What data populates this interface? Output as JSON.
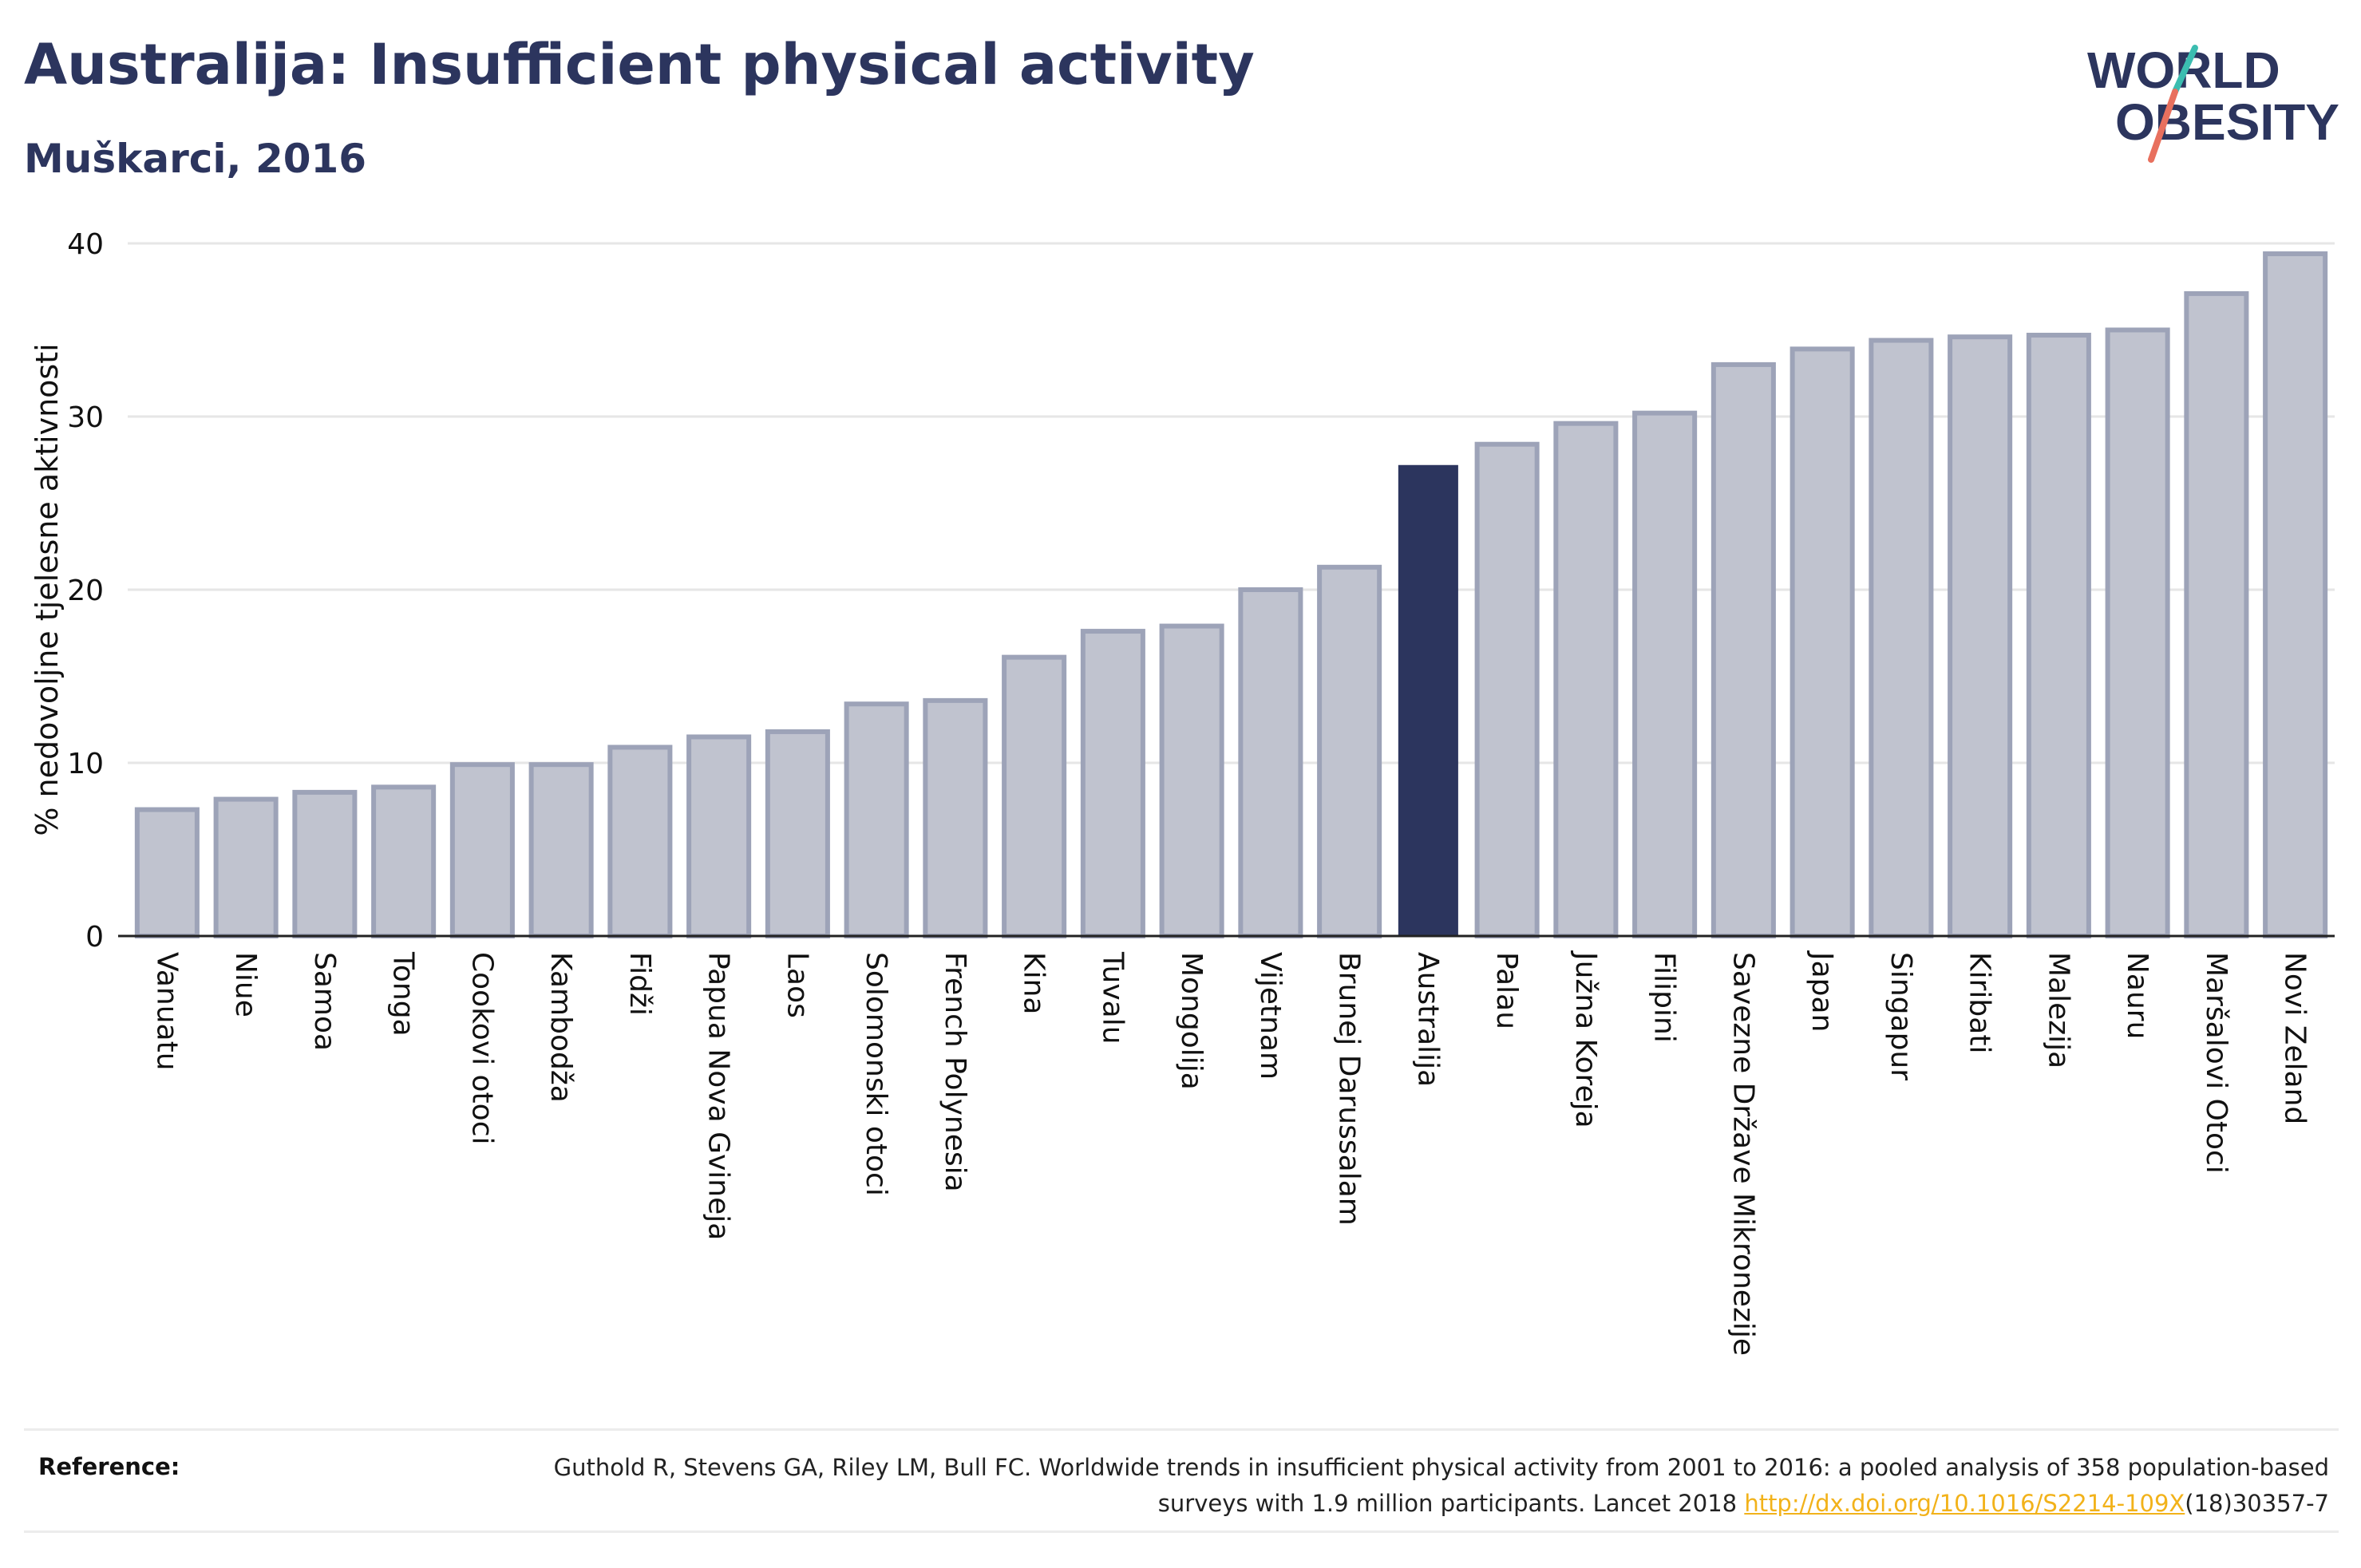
{
  "header": {
    "title": "Australija: Insufficient physical activity",
    "subtitle": "Muškarci, 2016"
  },
  "logo": {
    "line1": "WORLD",
    "line2": "OBESITY",
    "colors": {
      "text": "#2c355e",
      "slash_teal": "#3bbdb0",
      "slash_coral": "#e8705e"
    }
  },
  "chart_data": {
    "type": "bar",
    "title": "Australija: Insufficient physical activity",
    "subtitle": "Muškarci, 2016",
    "xlabel": "",
    "ylabel": "% nedovoljne tjelesne aktivnosti",
    "ylim": [
      0,
      40
    ],
    "yticks": [
      0,
      10,
      20,
      30,
      40
    ],
    "grid": true,
    "highlight": "Australija",
    "colors": {
      "bar": "#c0c3cf",
      "bar_border": "#9da3b8",
      "highlight": "#2c355e",
      "grid": "#e6e6e6"
    },
    "categories": [
      "Vanuatu",
      "Niue",
      "Samoa",
      "Tonga",
      "Cookovi otoci",
      "Kambodža",
      "Fidži",
      "Papua Nova Gvineja",
      "Laos",
      "Solomonski otoci",
      "French Polynesia",
      "Kina",
      "Tuvalu",
      "Mongolija",
      "Vijetnam",
      "Brunej Darussalam",
      "Australija",
      "Palau",
      "Južna Koreja",
      "Filipini",
      "Savezne Države Mikronezije",
      "Japan",
      "Singapur",
      "Kiribati",
      "Malezija",
      "Nauru",
      "Maršalovi Otoci",
      "Novi Zeland"
    ],
    "values": [
      7.3,
      7.9,
      8.3,
      8.6,
      9.9,
      9.9,
      10.9,
      11.5,
      11.8,
      13.4,
      13.6,
      16.1,
      17.6,
      17.9,
      20.0,
      21.3,
      27.2,
      28.4,
      29.6,
      30.2,
      33.0,
      33.9,
      34.4,
      34.6,
      34.7,
      35.0,
      37.1,
      39.4
    ]
  },
  "reference": {
    "label": "Reference:",
    "text": "Guthold R, Stevens GA, Riley LM, Bull FC. Worldwide trends in insufficient physical activity from 2001 to 2016: a pooled analysis of 358 population-based surveys with 1.9 million participants. Lancet 2018 ",
    "link_text": "http://dx.doi.org/10.1016/S2214-109X",
    "suffix": "(18)30357-7"
  }
}
